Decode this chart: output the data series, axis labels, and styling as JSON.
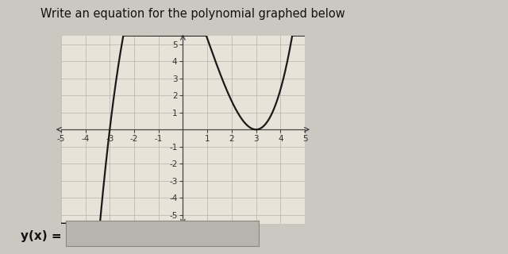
{
  "title": "Write an equation for the polynomial graphed below",
  "xlim": [
    -5,
    5
  ],
  "ylim": [
    -5.5,
    5.5
  ],
  "xticks": [
    -5,
    -4,
    -3,
    -2,
    -1,
    1,
    2,
    3,
    4,
    5
  ],
  "yticks": [
    -5,
    -4,
    -3,
    -2,
    -1,
    1,
    2,
    3,
    4,
    5
  ],
  "curve_color": "#1a1a1a",
  "curve_linewidth": 1.6,
  "bg_color": "#cbc8c2",
  "plot_bg": "#e8e3d8",
  "grid_color": "#b8b3a8",
  "grid_linewidth": 0.5,
  "spine_color": "#444444",
  "tick_fontsize": 7.5,
  "tick_color": "#333333",
  "title_fontsize": 10.5,
  "ylabel_text": "y(x) =",
  "ylabel_fontsize": 11,
  "polynomial_a": 0.333,
  "polynomial_root1": -3,
  "polynomial_root2": 3,
  "input_box_color": "#b8b4ae",
  "input_box_edge": "#888880"
}
